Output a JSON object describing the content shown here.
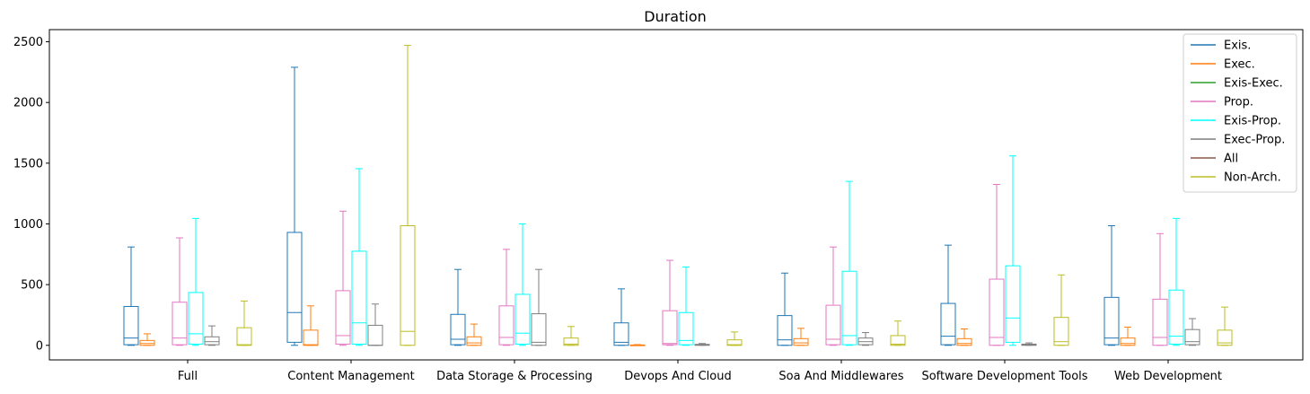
{
  "chart_data": {
    "type": "box",
    "title": "Duration",
    "xlabel": "",
    "ylabel": "",
    "ylim": [
      -120,
      2600
    ],
    "yticks": [
      0,
      500,
      1000,
      1500,
      2000,
      2500
    ],
    "grid": false,
    "legend_position": "top-right",
    "categories": [
      "Full",
      "Content Management",
      "Data Storage & Processing",
      "Devops And Cloud",
      "Soa And Middlewares",
      "Software Development Tools",
      "Web Development"
    ],
    "series": [
      {
        "name": "Exis.",
        "color": "#1f77b4",
        "boxes": [
          {
            "whislo": 0,
            "q1": 5,
            "med": 60,
            "q3": 320,
            "whishi": 810
          },
          {
            "whislo": 0,
            "q1": 25,
            "med": 270,
            "q3": 930,
            "whishi": 2290
          },
          {
            "whislo": 0,
            "q1": 5,
            "med": 50,
            "q3": 255,
            "whishi": 625
          },
          {
            "whislo": 0,
            "q1": 0,
            "med": 25,
            "q3": 185,
            "whishi": 465
          },
          {
            "whislo": 0,
            "q1": 0,
            "med": 45,
            "q3": 245,
            "whishi": 595
          },
          {
            "whislo": 0,
            "q1": 5,
            "med": 75,
            "q3": 345,
            "whishi": 825
          },
          {
            "whislo": 0,
            "q1": 5,
            "med": 60,
            "q3": 395,
            "whishi": 985
          }
        ]
      },
      {
        "name": "Exec.",
        "color": "#ff7f0e",
        "boxes": [
          {
            "whislo": 0,
            "q1": 0,
            "med": 15,
            "q3": 40,
            "whishi": 95
          },
          {
            "whislo": 0,
            "q1": 0,
            "med": 5,
            "q3": 125,
            "whishi": 325
          },
          {
            "whislo": 0,
            "q1": 0,
            "med": 20,
            "q3": 70,
            "whishi": 175
          },
          {
            "whislo": 0,
            "q1": 0,
            "med": 0,
            "q3": 3,
            "whishi": 6
          },
          {
            "whislo": 0,
            "q1": 0,
            "med": 20,
            "q3": 55,
            "whishi": 140
          },
          {
            "whislo": 0,
            "q1": 0,
            "med": 15,
            "q3": 55,
            "whishi": 135
          },
          {
            "whislo": 0,
            "q1": 0,
            "med": 15,
            "q3": 60,
            "whishi": 150
          }
        ]
      },
      {
        "name": "Exis-Exec.",
        "color": "#2ca02c",
        "boxes": []
      },
      {
        "name": "Prop.",
        "color": "#e377c2",
        "boxes": [
          {
            "whislo": 0,
            "q1": 5,
            "med": 60,
            "q3": 355,
            "whishi": 885
          },
          {
            "whislo": 0,
            "q1": 10,
            "med": 80,
            "q3": 450,
            "whishi": 1105
          },
          {
            "whislo": 0,
            "q1": 5,
            "med": 65,
            "q3": 325,
            "whishi": 790
          },
          {
            "whislo": 0,
            "q1": 5,
            "med": 15,
            "q3": 285,
            "whishi": 700
          },
          {
            "whislo": 0,
            "q1": 5,
            "med": 50,
            "q3": 330,
            "whishi": 810
          },
          {
            "whislo": 0,
            "q1": 0,
            "med": 65,
            "q3": 545,
            "whishi": 1325
          },
          {
            "whislo": 0,
            "q1": 0,
            "med": 65,
            "q3": 380,
            "whishi": 920
          }
        ]
      },
      {
        "name": "Exis-Prop.",
        "color": "#00ffff",
        "boxes": [
          {
            "whislo": 0,
            "q1": 10,
            "med": 95,
            "q3": 435,
            "whishi": 1045
          },
          {
            "whislo": 0,
            "q1": 10,
            "med": 185,
            "q3": 775,
            "whishi": 1455
          },
          {
            "whislo": 0,
            "q1": 10,
            "med": 100,
            "q3": 420,
            "whishi": 1000
          },
          {
            "whislo": 0,
            "q1": 5,
            "med": 40,
            "q3": 270,
            "whishi": 645
          },
          {
            "whislo": 0,
            "q1": 5,
            "med": 80,
            "q3": 610,
            "whishi": 1350
          },
          {
            "whislo": 0,
            "q1": 25,
            "med": 225,
            "q3": 655,
            "whishi": 1560
          },
          {
            "whislo": 0,
            "q1": 10,
            "med": 75,
            "q3": 455,
            "whishi": 1045
          }
        ]
      },
      {
        "name": "Exec-Prop.",
        "color": "#7f7f7f",
        "boxes": [
          {
            "whislo": 0,
            "q1": 5,
            "med": 30,
            "q3": 70,
            "whishi": 160
          },
          {
            "whislo": 0,
            "q1": 0,
            "med": 0,
            "q3": 165,
            "whishi": 340
          },
          {
            "whislo": 0,
            "q1": 0,
            "med": 25,
            "q3": 260,
            "whishi": 625
          },
          {
            "whislo": 0,
            "q1": 0,
            "med": 3,
            "q3": 8,
            "whishi": 15
          },
          {
            "whislo": 0,
            "q1": 5,
            "med": 30,
            "q3": 60,
            "whishi": 105
          },
          {
            "whislo": 0,
            "q1": 0,
            "med": 5,
            "q3": 10,
            "whishi": 20
          },
          {
            "whislo": 0,
            "q1": 5,
            "med": 30,
            "q3": 130,
            "whishi": 220
          }
        ]
      },
      {
        "name": "All",
        "color": "#8c564b",
        "boxes": []
      },
      {
        "name": "Non-Arch.",
        "color": "#bcbd22",
        "boxes": [
          {
            "whislo": 0,
            "q1": 0,
            "med": 5,
            "q3": 145,
            "whishi": 365
          },
          {
            "whislo": 0,
            "q1": 0,
            "med": 115,
            "q3": 985,
            "whishi": 2470
          },
          {
            "whislo": 0,
            "q1": 0,
            "med": 10,
            "q3": 60,
            "whishi": 155
          },
          {
            "whislo": 0,
            "q1": 0,
            "med": 5,
            "q3": 45,
            "whishi": 110
          },
          {
            "whislo": 0,
            "q1": 0,
            "med": 10,
            "q3": 80,
            "whishi": 200
          },
          {
            "whislo": 0,
            "q1": 0,
            "med": 30,
            "q3": 230,
            "whishi": 580
          },
          {
            "whislo": 0,
            "q1": 0,
            "med": 20,
            "q3": 125,
            "whishi": 315
          }
        ]
      }
    ]
  }
}
